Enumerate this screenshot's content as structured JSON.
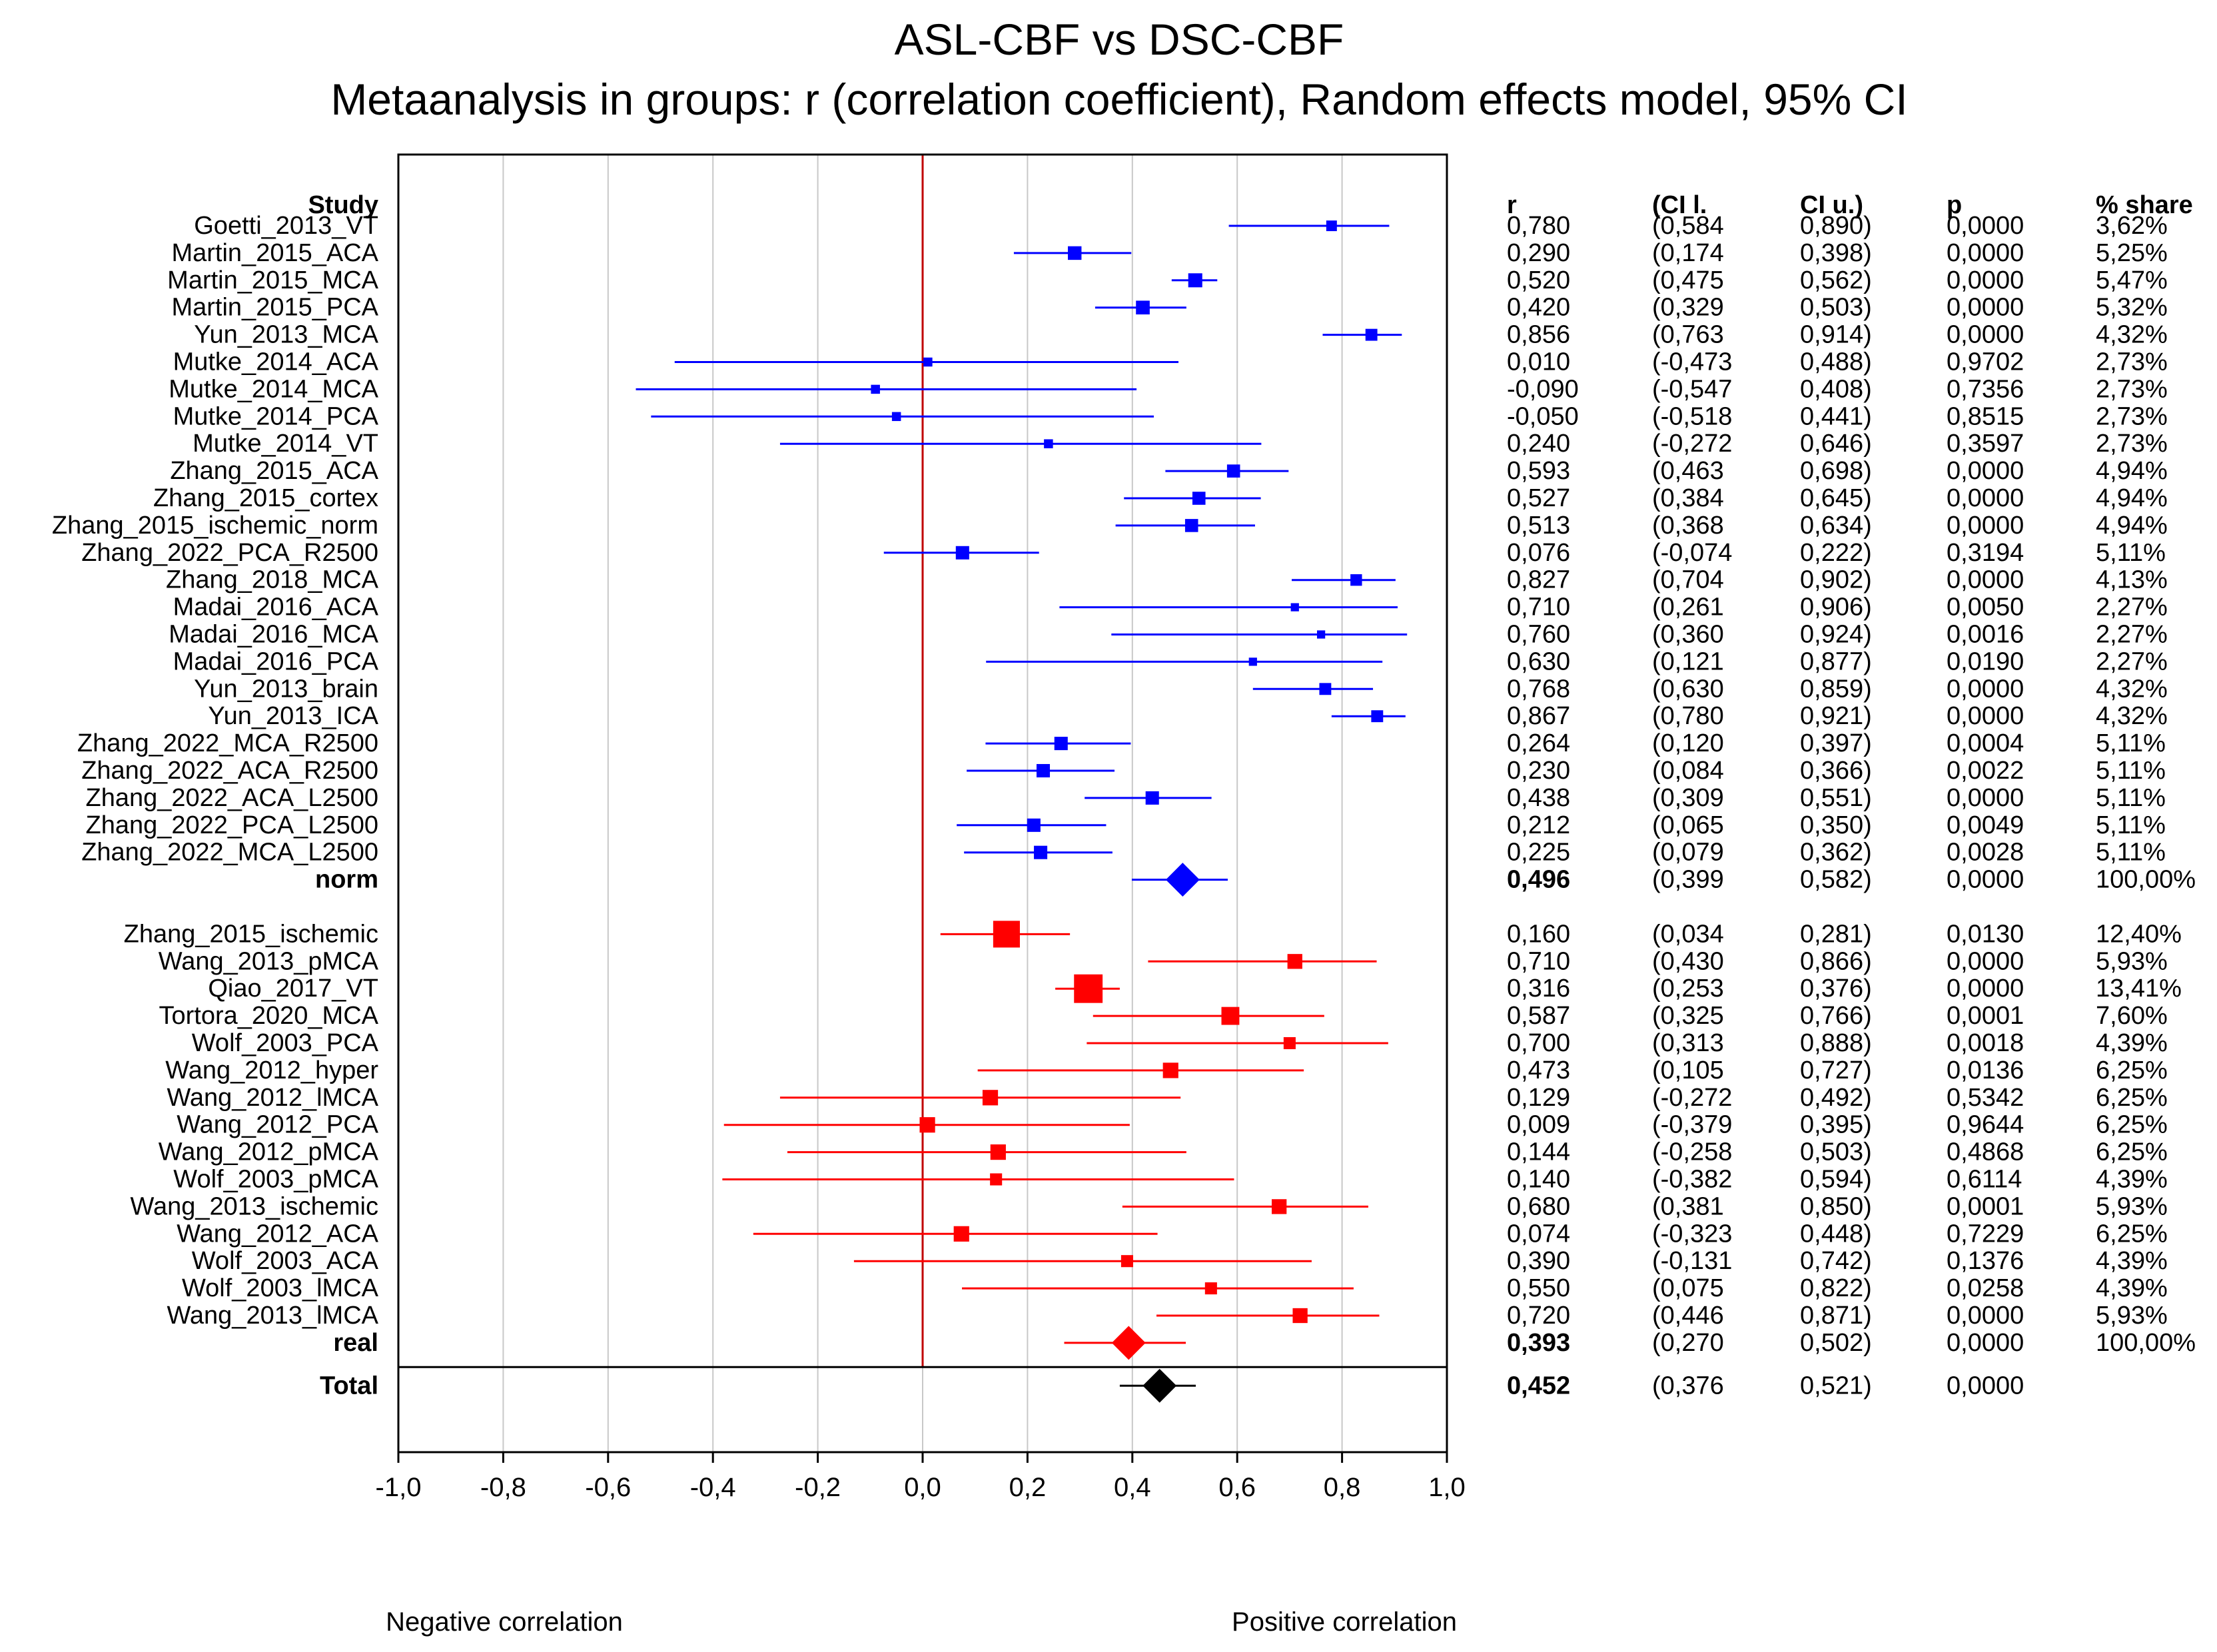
{
  "chart_data": {
    "type": "forest",
    "title": "ASL-CBF vs DSC-CBF",
    "subtitle": "Metaanalysis in groups: r (correlation coefficient), Random  effects model, 95% CI",
    "xlim": [
      -1.0,
      1.0
    ],
    "x_ticks": [
      "-1,0",
      "-0,8",
      "-0,6",
      "-0,4",
      "-0,2",
      "0,0",
      "0,2",
      "0,4",
      "0,6",
      "0,8",
      "1,0"
    ],
    "x_tick_values": [
      -1.0,
      -0.8,
      -0.6,
      -0.4,
      -0.2,
      0.0,
      0.2,
      0.4,
      0.6,
      0.8,
      1.0
    ],
    "grid": true,
    "reference_line": 0.0,
    "label_left": "Negative correlation",
    "label_right": "Positive correlation",
    "columns": {
      "study": "Study",
      "r": "r",
      "ci_l": "(CI l.",
      "ci_u": "CI u.)",
      "p": "p",
      "share": "% share"
    },
    "colors": {
      "norm": "#0000ff",
      "real": "#ff0000",
      "total": "#000000",
      "refline": "#c00000",
      "grid": "#c8c8c8"
    },
    "groups": [
      {
        "name": "norm",
        "color": "#0000ff",
        "studies": [
          {
            "label": "Goetti_2013_VT",
            "r": 0.78,
            "lo": 0.584,
            "hi": 0.89,
            "r_text": "0,780",
            "lo_text": "(0,584",
            "hi_text": "0,890)",
            "p": "0,0000",
            "share": "3,62%",
            "weight": 3.62
          },
          {
            "label": "Martin_2015_ACA",
            "r": 0.29,
            "lo": 0.174,
            "hi": 0.398,
            "r_text": "0,290",
            "lo_text": "(0,174",
            "hi_text": "0,398)",
            "p": "0,0000",
            "share": "5,25%",
            "weight": 5.25
          },
          {
            "label": "Martin_2015_MCA",
            "r": 0.52,
            "lo": 0.475,
            "hi": 0.562,
            "r_text": "0,520",
            "lo_text": "(0,475",
            "hi_text": "0,562)",
            "p": "0,0000",
            "share": "5,47%",
            "weight": 5.47
          },
          {
            "label": "Martin_2015_PCA",
            "r": 0.42,
            "lo": 0.329,
            "hi": 0.503,
            "r_text": "0,420",
            "lo_text": "(0,329",
            "hi_text": "0,503)",
            "p": "0,0000",
            "share": "5,32%",
            "weight": 5.32
          },
          {
            "label": "Yun_2013_MCA",
            "r": 0.856,
            "lo": 0.763,
            "hi": 0.914,
            "r_text": "0,856",
            "lo_text": "(0,763",
            "hi_text": "0,914)",
            "p": "0,0000",
            "share": "4,32%",
            "weight": 4.32
          },
          {
            "label": "Mutke_2014_ACA",
            "r": 0.01,
            "lo": -0.473,
            "hi": 0.488,
            "r_text": "0,010",
            "lo_text": "(-0,473",
            "hi_text": "0,488)",
            "p": "0,9702",
            "share": "2,73%",
            "weight": 2.73
          },
          {
            "label": "Mutke_2014_MCA",
            "r": -0.09,
            "lo": -0.547,
            "hi": 0.408,
            "r_text": "-0,090",
            "lo_text": "(-0,547",
            "hi_text": "0,408)",
            "p": "0,7356",
            "share": "2,73%",
            "weight": 2.73
          },
          {
            "label": "Mutke_2014_PCA",
            "r": -0.05,
            "lo": -0.518,
            "hi": 0.441,
            "r_text": "-0,050",
            "lo_text": "(-0,518",
            "hi_text": "0,441)",
            "p": "0,8515",
            "share": "2,73%",
            "weight": 2.73
          },
          {
            "label": "Mutke_2014_VT",
            "r": 0.24,
            "lo": -0.272,
            "hi": 0.646,
            "r_text": "0,240",
            "lo_text": "(-0,272",
            "hi_text": "0,646)",
            "p": "0,3597",
            "share": "2,73%",
            "weight": 2.73
          },
          {
            "label": "Zhang_2015_ACA",
            "r": 0.593,
            "lo": 0.463,
            "hi": 0.698,
            "r_text": "0,593",
            "lo_text": "(0,463",
            "hi_text": "0,698)",
            "p": "0,0000",
            "share": "4,94%",
            "weight": 4.94
          },
          {
            "label": "Zhang_2015_cortex",
            "r": 0.527,
            "lo": 0.384,
            "hi": 0.645,
            "r_text": "0,527",
            "lo_text": "(0,384",
            "hi_text": "0,645)",
            "p": "0,0000",
            "share": "4,94%",
            "weight": 4.94
          },
          {
            "label": "Zhang_2015_ischemic_norm",
            "r": 0.513,
            "lo": 0.368,
            "hi": 0.634,
            "r_text": "0,513",
            "lo_text": "(0,368",
            "hi_text": "0,634)",
            "p": "0,0000",
            "share": "4,94%",
            "weight": 4.94
          },
          {
            "label": "Zhang_2022_PCA_R2500",
            "r": 0.076,
            "lo": -0.074,
            "hi": 0.222,
            "r_text": "0,076",
            "lo_text": "(-0,074",
            "hi_text": "0,222)",
            "p": "0,3194",
            "share": "5,11%",
            "weight": 5.11
          },
          {
            "label": "Zhang_2018_MCA",
            "r": 0.827,
            "lo": 0.704,
            "hi": 0.902,
            "r_text": "0,827",
            "lo_text": "(0,704",
            "hi_text": "0,902)",
            "p": "0,0000",
            "share": "4,13%",
            "weight": 4.13
          },
          {
            "label": "Madai_2016_ACA",
            "r": 0.71,
            "lo": 0.261,
            "hi": 0.906,
            "r_text": "0,710",
            "lo_text": "(0,261",
            "hi_text": "0,906)",
            "p": "0,0050",
            "share": "2,27%",
            "weight": 2.27
          },
          {
            "label": "Madai_2016_MCA",
            "r": 0.76,
            "lo": 0.36,
            "hi": 0.924,
            "r_text": "0,760",
            "lo_text": "(0,360",
            "hi_text": "0,924)",
            "p": "0,0016",
            "share": "2,27%",
            "weight": 2.27
          },
          {
            "label": "Madai_2016_PCA",
            "r": 0.63,
            "lo": 0.121,
            "hi": 0.877,
            "r_text": "0,630",
            "lo_text": "(0,121",
            "hi_text": "0,877)",
            "p": "0,0190",
            "share": "2,27%",
            "weight": 2.27
          },
          {
            "label": "Yun_2013_brain",
            "r": 0.768,
            "lo": 0.63,
            "hi": 0.859,
            "r_text": "0,768",
            "lo_text": "(0,630",
            "hi_text": "0,859)",
            "p": "0,0000",
            "share": "4,32%",
            "weight": 4.32
          },
          {
            "label": "Yun_2013_ICA",
            "r": 0.867,
            "lo": 0.78,
            "hi": 0.921,
            "r_text": "0,867",
            "lo_text": "(0,780",
            "hi_text": "0,921)",
            "p": "0,0000",
            "share": "4,32%",
            "weight": 4.32
          },
          {
            "label": "Zhang_2022_MCA_R2500",
            "r": 0.264,
            "lo": 0.12,
            "hi": 0.397,
            "r_text": "0,264",
            "lo_text": "(0,120",
            "hi_text": "0,397)",
            "p": "0,0004",
            "share": "5,11%",
            "weight": 5.11
          },
          {
            "label": "Zhang_2022_ACA_R2500",
            "r": 0.23,
            "lo": 0.084,
            "hi": 0.366,
            "r_text": "0,230",
            "lo_text": "(0,084",
            "hi_text": "0,366)",
            "p": "0,0022",
            "share": "5,11%",
            "weight": 5.11
          },
          {
            "label": "Zhang_2022_ACA_L2500",
            "r": 0.438,
            "lo": 0.309,
            "hi": 0.551,
            "r_text": "0,438",
            "lo_text": "(0,309",
            "hi_text": "0,551)",
            "p": "0,0000",
            "share": "5,11%",
            "weight": 5.11
          },
          {
            "label": "Zhang_2022_PCA_L2500",
            "r": 0.212,
            "lo": 0.065,
            "hi": 0.35,
            "r_text": "0,212",
            "lo_text": "(0,065",
            "hi_text": "0,350)",
            "p": "0,0049",
            "share": "5,11%",
            "weight": 5.11
          },
          {
            "label": "Zhang_2022_MCA_L2500",
            "r": 0.225,
            "lo": 0.079,
            "hi": 0.362,
            "r_text": "0,225",
            "lo_text": "(0,079",
            "hi_text": "0,362)",
            "p": "0,0028",
            "share": "5,11%",
            "weight": 5.11
          }
        ],
        "summary": {
          "label": "norm",
          "r": 0.496,
          "lo": 0.399,
          "hi": 0.582,
          "r_text": "0,496",
          "lo_text": "(0,399",
          "hi_text": "0,582)",
          "p": "0,0000",
          "share": "100,00%"
        }
      },
      {
        "name": "real",
        "color": "#ff0000",
        "studies": [
          {
            "label": "Zhang_2015_ischemic",
            "r": 0.16,
            "lo": 0.034,
            "hi": 0.281,
            "r_text": "0,160",
            "lo_text": "(0,034",
            "hi_text": "0,281)",
            "p": "0,0130",
            "share": "12,40%",
            "weight": 12.4
          },
          {
            "label": "Wang_2013_pMCA",
            "r": 0.71,
            "lo": 0.43,
            "hi": 0.866,
            "r_text": "0,710",
            "lo_text": "(0,430",
            "hi_text": "0,866)",
            "p": "0,0000",
            "share": "5,93%",
            "weight": 5.93
          },
          {
            "label": "Qiao_2017_VT",
            "r": 0.316,
            "lo": 0.253,
            "hi": 0.376,
            "r_text": "0,316",
            "lo_text": "(0,253",
            "hi_text": "0,376)",
            "p": "0,0000",
            "share": "13,41%",
            "weight": 13.41
          },
          {
            "label": "Tortora_2020_MCA",
            "r": 0.587,
            "lo": 0.325,
            "hi": 0.766,
            "r_text": "0,587",
            "lo_text": "(0,325",
            "hi_text": "0,766)",
            "p": "0,0001",
            "share": "7,60%",
            "weight": 7.6
          },
          {
            "label": "Wolf_2003_PCA",
            "r": 0.7,
            "lo": 0.313,
            "hi": 0.888,
            "r_text": "0,700",
            "lo_text": "(0,313",
            "hi_text": "0,888)",
            "p": "0,0018",
            "share": "4,39%",
            "weight": 4.39
          },
          {
            "label": "Wang_2012_hyper",
            "r": 0.473,
            "lo": 0.105,
            "hi": 0.727,
            "r_text": "0,473",
            "lo_text": "(0,105",
            "hi_text": "0,727)",
            "p": "0,0136",
            "share": "6,25%",
            "weight": 6.25
          },
          {
            "label": "Wang_2012_lMCA",
            "r": 0.129,
            "lo": -0.272,
            "hi": 0.492,
            "r_text": "0,129",
            "lo_text": "(-0,272",
            "hi_text": "0,492)",
            "p": "0,5342",
            "share": "6,25%",
            "weight": 6.25
          },
          {
            "label": "Wang_2012_PCA",
            "r": 0.009,
            "lo": -0.379,
            "hi": 0.395,
            "r_text": "0,009",
            "lo_text": "(-0,379",
            "hi_text": "0,395)",
            "p": "0,9644",
            "share": "6,25%",
            "weight": 6.25
          },
          {
            "label": "Wang_2012_pMCA",
            "r": 0.144,
            "lo": -0.258,
            "hi": 0.503,
            "r_text": "0,144",
            "lo_text": "(-0,258",
            "hi_text": "0,503)",
            "p": "0,4868",
            "share": "6,25%",
            "weight": 6.25
          },
          {
            "label": "Wolf_2003_pMCA",
            "r": 0.14,
            "lo": -0.382,
            "hi": 0.594,
            "r_text": "0,140",
            "lo_text": "(-0,382",
            "hi_text": "0,594)",
            "p": "0,6114",
            "share": "4,39%",
            "weight": 4.39
          },
          {
            "label": "Wang_2013_ischemic",
            "r": 0.68,
            "lo": 0.381,
            "hi": 0.85,
            "r_text": "0,680",
            "lo_text": "(0,381",
            "hi_text": "0,850)",
            "p": "0,0001",
            "share": "5,93%",
            "weight": 5.93
          },
          {
            "label": "Wang_2012_ACA",
            "r": 0.074,
            "lo": -0.323,
            "hi": 0.448,
            "r_text": "0,074",
            "lo_text": "(-0,323",
            "hi_text": "0,448)",
            "p": "0,7229",
            "share": "6,25%",
            "weight": 6.25
          },
          {
            "label": "Wolf_2003_ACA",
            "r": 0.39,
            "lo": -0.131,
            "hi": 0.742,
            "r_text": "0,390",
            "lo_text": "(-0,131",
            "hi_text": "0,742)",
            "p": "0,1376",
            "share": "4,39%",
            "weight": 4.39
          },
          {
            "label": "Wolf_2003_lMCA",
            "r": 0.55,
            "lo": 0.075,
            "hi": 0.822,
            "r_text": "0,550",
            "lo_text": "(0,075",
            "hi_text": "0,822)",
            "p": "0,0258",
            "share": "4,39%",
            "weight": 4.39
          },
          {
            "label": "Wang_2013_lMCA",
            "r": 0.72,
            "lo": 0.446,
            "hi": 0.871,
            "r_text": "0,720",
            "lo_text": "(0,446",
            "hi_text": "0,871)",
            "p": "0,0000",
            "share": "5,93%",
            "weight": 5.93
          }
        ],
        "summary": {
          "label": "real",
          "r": 0.393,
          "lo": 0.27,
          "hi": 0.502,
          "r_text": "0,393",
          "lo_text": "(0,270",
          "hi_text": "0,502)",
          "p": "0,0000",
          "share": "100,00%"
        }
      }
    ],
    "total": {
      "label": "Total",
      "r": 0.452,
      "lo": 0.376,
      "hi": 0.521,
      "r_text": "0,452",
      "lo_text": "(0,376",
      "hi_text": "0,521)",
      "p": "0,0000"
    }
  }
}
